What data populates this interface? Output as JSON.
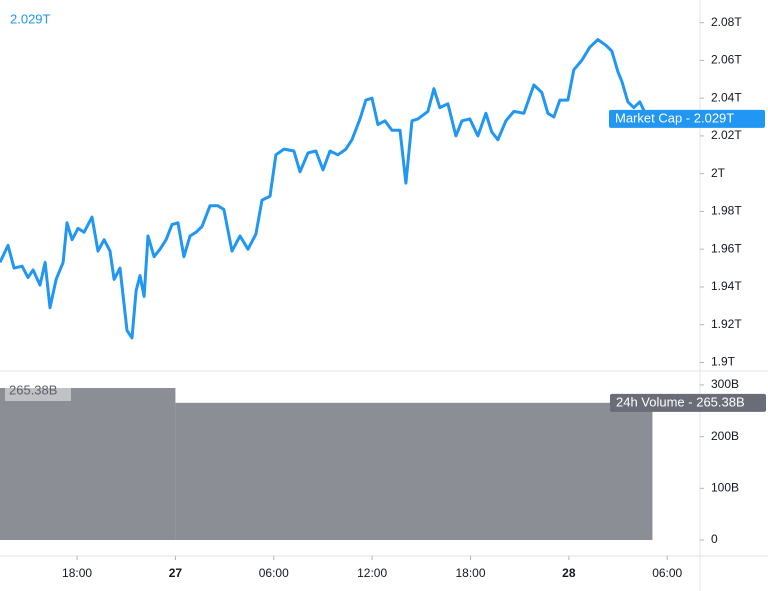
{
  "chart_data": [
    {
      "type": "line",
      "header_label": "2.029T",
      "last_label": "Market Cap - 2.029T",
      "color": "#2196f3",
      "x": [
        13.3,
        13.79,
        14.16,
        14.65,
        15.01,
        15.32,
        15.74,
        16.05,
        16.35,
        16.72,
        17.15,
        17.39,
        17.7,
        18.06,
        18.43,
        18.91,
        19.28,
        19.65,
        20.01,
        20.26,
        20.62,
        21.05,
        21.35,
        21.6,
        21.84,
        22.09,
        22.33,
        22.7,
        23.06,
        23.43,
        23.79,
        24.16,
        24.52,
        24.89,
        25.26,
        25.62,
        26.11,
        26.6,
        26.96,
        27.45,
        27.94,
        28.43,
        28.91,
        29.28,
        29.77,
        30.13,
        30.62,
        31.23,
        31.6,
        32.09,
        32.57,
        33.0,
        33.43,
        33.91,
        34.4,
        34.77,
        35.26,
        35.62,
        35.99,
        36.35,
        36.78,
        37.21,
        37.7,
        38.06,
        38.43,
        38.79,
        39.4,
        39.77,
        40.13,
        40.62,
        41.11,
        41.48,
        41.96,
        42.45,
        42.94,
        43.3,
        43.67,
        44.16,
        44.65,
        45.26,
        45.87,
        46.35,
        46.72,
        47.09,
        47.45,
        47.94,
        48.3,
        48.79,
        49.28,
        49.77,
        50.26,
        50.62,
        50.99,
        51.23,
        51.6,
        51.96,
        52.33,
        52.82
      ],
      "values": [
        1.953,
        1.962,
        1.95,
        1.951,
        1.945,
        1.949,
        1.941,
        1.953,
        1.929,
        1.944,
        1.953,
        1.974,
        1.965,
        1.971,
        1.969,
        1.977,
        1.959,
        1.965,
        1.959,
        1.944,
        1.95,
        1.917,
        1.913,
        1.938,
        1.946,
        1.935,
        1.967,
        1.956,
        1.96,
        1.965,
        1.973,
        1.974,
        1.956,
        1.967,
        1.969,
        1.972,
        1.983,
        1.983,
        1.981,
        1.959,
        1.967,
        1.96,
        1.968,
        1.986,
        1.988,
        2.01,
        2.013,
        2.012,
        2.001,
        2.011,
        2.012,
        2.002,
        2.012,
        2.01,
        2.013,
        2.018,
        2.029,
        2.039,
        2.04,
        2.026,
        2.028,
        2.023,
        2.023,
        1.995,
        2.028,
        2.029,
        2.033,
        2.045,
        2.035,
        2.037,
        2.02,
        2.028,
        2.029,
        2.02,
        2.032,
        2.022,
        2.018,
        2.028,
        2.033,
        2.032,
        2.047,
        2.043,
        2.032,
        2.03,
        2.039,
        2.039,
        2.055,
        2.06,
        2.067,
        2.071,
        2.068,
        2.065,
        2.054,
        2.049,
        2.038,
        2.035,
        2.038,
        2.029
      ],
      "xlim": [
        13.3,
        56
      ],
      "ylim": [
        1.896,
        2.092
      ],
      "yticks": [
        {
          "value": 1.9,
          "label": "1.9T"
        },
        {
          "value": 1.92,
          "label": "1.92T"
        },
        {
          "value": 1.94,
          "label": "1.94T"
        },
        {
          "value": 1.96,
          "label": "1.96T"
        },
        {
          "value": 1.98,
          "label": "1.98T"
        },
        {
          "value": 2.0,
          "label": "2T"
        },
        {
          "value": 2.02,
          "label": "2.02T"
        },
        {
          "value": 2.04,
          "label": "2.04T"
        },
        {
          "value": 2.06,
          "label": "2.06T"
        },
        {
          "value": 2.08,
          "label": "2.08T"
        }
      ]
    },
    {
      "type": "histogram",
      "header_label": "265.38B",
      "last_label": "24h Volume - 265.38B",
      "color": "#8c8e95",
      "bins": [
        13.3,
        24,
        53.1
      ],
      "values": [
        294,
        265.38
      ],
      "xlim": [
        13.3,
        56
      ],
      "ylim": [
        -29,
        325
      ],
      "yticks": [
        0,
        {
          "value": 100,
          "label": "100B"
        },
        {
          "value": 200,
          "label": "200B"
        },
        {
          "value": 300,
          "label": "300B"
        }
      ],
      "xticks": [
        {
          "value": 18,
          "label": "18:00"
        },
        {
          "value": 24,
          "label": "27"
        },
        {
          "value": 30,
          "label": "06:00"
        },
        {
          "value": 36,
          "label": "12:00"
        },
        {
          "value": 42,
          "label": "18:00"
        },
        {
          "value": 48,
          "label": "28"
        },
        {
          "value": 54,
          "label": "06:00"
        }
      ]
    }
  ]
}
